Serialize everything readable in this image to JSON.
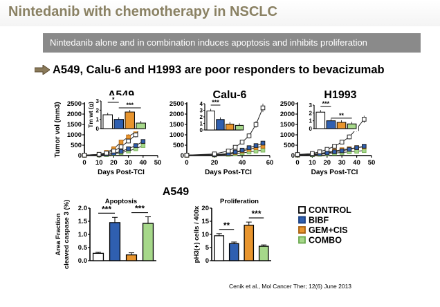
{
  "header": {
    "title": "Nintedanib with chemotherapy in NSCLC",
    "subtitle": "Nintedanib alone and in combination induces apoptosis and inhibits proliferation",
    "headline": "A549, Calu-6 and H1993 are poor responders to bevacizumab"
  },
  "colors": {
    "title": "#8a8163",
    "control": "#ffffff",
    "bibf": "#2f5fb0",
    "gem_cis": "#e8952e",
    "combo": "#a6d88a"
  },
  "figure": {
    "section_label": "A549",
    "citation": "Cenik et al., Mol Cancer Ther; 12(6) June 2013"
  },
  "legend": [
    {
      "label": "CONTROL",
      "color": "#ffffff"
    },
    {
      "label": "BIBF",
      "color": "#2f5fb0"
    },
    {
      "label": "GEM+CIS",
      "color": "#e8952e"
    },
    {
      "label": "COMBO",
      "color": "#a6d88a"
    }
  ],
  "chart_data": [
    {
      "type": "line",
      "title": "A549",
      "xlabel": "Days Post-TCI",
      "ylabel": "Tumor vol (mm3)",
      "xlim": [
        0,
        50
      ],
      "ylim": [
        0,
        2500
      ],
      "xticks": [
        "0",
        "10",
        "20",
        "30",
        "40",
        "50"
      ],
      "yticks": [
        "0",
        "500",
        "1000",
        "1500",
        "2000",
        "2500"
      ],
      "series": [
        {
          "key": "control",
          "color": "#ffffff",
          "x": [
            0,
            10,
            15,
            20,
            25,
            30,
            35,
            40
          ],
          "y": [
            20,
            60,
            120,
            220,
            420,
            700,
            1000,
            1550
          ]
        },
        {
          "key": "bibf",
          "color": "#2f5fb0",
          "x": [
            0,
            10,
            15,
            20,
            25,
            30,
            35,
            40
          ],
          "y": [
            20,
            40,
            70,
            110,
            200,
            330,
            480,
            680
          ]
        },
        {
          "key": "gem_cis",
          "color": "#e8952e",
          "x": [
            0,
            10,
            15,
            20,
            25,
            30,
            35,
            40
          ],
          "y": [
            20,
            60,
            150,
            330,
            650,
            900,
            1150,
            1350
          ]
        },
        {
          "key": "combo",
          "color": "#a6d88a",
          "x": [
            0,
            10,
            15,
            20,
            25,
            30,
            35,
            40
          ],
          "y": [
            20,
            30,
            50,
            80,
            140,
            220,
            330,
            480
          ]
        }
      ],
      "inset": {
        "type": "bar",
        "ylabel": "Tm wt (g)",
        "yticks": [
          "0",
          "1",
          "2",
          "3"
        ],
        "ylim": [
          0,
          3
        ],
        "values": [
          1.5,
          1.0,
          1.8,
          0.6
        ],
        "colors": [
          "#ffffff",
          "#2f5fb0",
          "#e8952e",
          "#a6d88a"
        ],
        "annotations": [
          "*",
          "***"
        ]
      }
    },
    {
      "type": "line",
      "title": "Calu-6",
      "xlabel": "Days Post-TCI",
      "xlim": [
        0,
        60
      ],
      "ylim": [
        0,
        2500
      ],
      "xticks": [
        "0",
        "20",
        "40",
        "60"
      ],
      "yticks": [
        "0",
        "500",
        "1000",
        "1500",
        "2000",
        "2500"
      ],
      "series": [
        {
          "key": "control",
          "color": "#ffffff",
          "x": [
            0,
            20,
            30,
            35,
            40,
            45,
            50,
            55
          ],
          "y": [
            20,
            80,
            220,
            400,
            650,
            950,
            1500,
            2300
          ]
        },
        {
          "key": "bibf",
          "color": "#2f5fb0",
          "x": [
            0,
            20,
            30,
            35,
            40,
            45,
            50,
            55
          ],
          "y": [
            20,
            40,
            100,
            170,
            260,
            380,
            480,
            600
          ]
        },
        {
          "key": "gem_cis",
          "color": "#e8952e",
          "x": [
            0,
            20,
            30,
            35,
            40,
            45,
            50,
            55
          ],
          "y": [
            20,
            40,
            90,
            150,
            220,
            300,
            380,
            450
          ]
        },
        {
          "key": "combo",
          "color": "#a6d88a",
          "x": [
            0,
            20,
            30,
            35,
            40,
            45,
            50,
            55
          ],
          "y": [
            20,
            30,
            60,
            90,
            130,
            170,
            220,
            260
          ]
        }
      ],
      "inset": {
        "type": "bar",
        "yticks": [
          "0",
          "1",
          "2",
          "3",
          "4"
        ],
        "ylim": [
          0,
          4
        ],
        "values": [
          2.9,
          1.6,
          0.9,
          0.7
        ],
        "colors": [
          "#ffffff",
          "#2f5fb0",
          "#e8952e",
          "#a6d88a"
        ],
        "annotations": [
          "***"
        ]
      }
    },
    {
      "type": "line",
      "title": "H1993",
      "xlabel": "Days Post-TCI",
      "xlim": [
        0,
        50
      ],
      "ylim": [
        0,
        2500
      ],
      "xticks": [
        "0",
        "10",
        "20",
        "30",
        "40",
        "50"
      ],
      "yticks": [
        "0",
        "500",
        "1000",
        "1500",
        "2000",
        "2500"
      ],
      "series": [
        {
          "key": "control",
          "color": "#ffffff",
          "x": [
            0,
            10,
            15,
            20,
            25,
            30,
            35,
            40,
            45
          ],
          "y": [
            50,
            100,
            180,
            300,
            450,
            650,
            900,
            1300,
            1750
          ]
        },
        {
          "key": "bibf",
          "color": "#2f5fb0",
          "x": [
            0,
            10,
            15,
            20,
            25,
            30,
            35,
            40,
            45
          ],
          "y": [
            30,
            60,
            90,
            130,
            180,
            230,
            300,
            380,
            450
          ]
        },
        {
          "key": "gem_cis",
          "color": "#e8952e",
          "x": [
            0,
            10,
            15,
            20,
            25,
            30,
            35,
            40,
            45
          ],
          "y": [
            30,
            60,
            100,
            160,
            220,
            280,
            330,
            380,
            420
          ]
        },
        {
          "key": "combo",
          "color": "#a6d88a",
          "x": [
            0,
            10,
            15,
            20,
            25,
            30,
            35,
            40,
            45
          ],
          "y": [
            20,
            40,
            60,
            90,
            120,
            150,
            180,
            210,
            240
          ]
        }
      ],
      "inset": {
        "type": "bar",
        "yticks": [
          "0",
          "1",
          "2",
          "3"
        ],
        "ylim": [
          0,
          3
        ],
        "values": [
          2.1,
          1.0,
          0.8,
          0.6
        ],
        "colors": [
          "#ffffff",
          "#2f5fb0",
          "#e8952e",
          "#a6d88a"
        ],
        "annotations": [
          "***",
          "**"
        ]
      }
    },
    {
      "type": "bar",
      "title": "Apoptosis",
      "ylabel": "Area Fraction cleaved caspase 3 (%)",
      "yticks": [
        "0.0",
        "0.5",
        "1.0",
        "1.5",
        "2.0"
      ],
      "ylim": [
        0,
        2.0
      ],
      "values": [
        0.28,
        1.45,
        0.22,
        1.42
      ],
      "errors": [
        0.04,
        0.2,
        0.08,
        0.25
      ],
      "colors": [
        "#ffffff",
        "#2f5fb0",
        "#e8952e",
        "#a6d88a"
      ],
      "annotations": [
        "***",
        "***"
      ]
    },
    {
      "type": "bar",
      "title": "Proliferation",
      "ylabel": "pH3(+) cells / 400x",
      "yticks": [
        "0",
        "5",
        "10",
        "15",
        "20"
      ],
      "ylim": [
        0,
        20
      ],
      "values": [
        9.5,
        6.5,
        13.5,
        5.5
      ],
      "errors": [
        0.8,
        0.6,
        1.2,
        0.5
      ],
      "colors": [
        "#ffffff",
        "#2f5fb0",
        "#e8952e",
        "#a6d88a"
      ],
      "annotations": [
        "**",
        "***"
      ]
    }
  ]
}
